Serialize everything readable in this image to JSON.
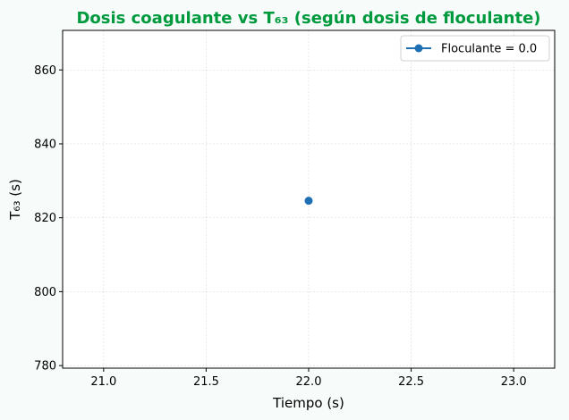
{
  "chart_data": {
    "type": "line",
    "title": "Dosis coagulante vs T₆₃ (según dosis de floculante)",
    "xlabel": "Tiempo (s)",
    "ylabel": "T₆₃ (s)",
    "xlim": [
      20.8,
      23.2
    ],
    "ylim": [
      779.3,
      870.7
    ],
    "xticks": [
      21.0,
      21.5,
      22.0,
      22.5,
      23.0
    ],
    "xtick_labels": [
      "21.0",
      "21.5",
      "22.0",
      "22.5",
      "23.0"
    ],
    "yticks": [
      780,
      800,
      820,
      840,
      860
    ],
    "ytick_labels": [
      "780",
      "800",
      "820",
      "840",
      "860"
    ],
    "grid": true,
    "legend_position": "top-right",
    "series": [
      {
        "name": "Floculante = 0.0",
        "x": [
          22.0
        ],
        "y": [
          824.6
        ]
      }
    ]
  },
  "colors": {
    "title": "#009a3e",
    "series": [
      "#1f6fb4"
    ],
    "background": "#f7fcfb",
    "axes_background": "#ffffff"
  }
}
